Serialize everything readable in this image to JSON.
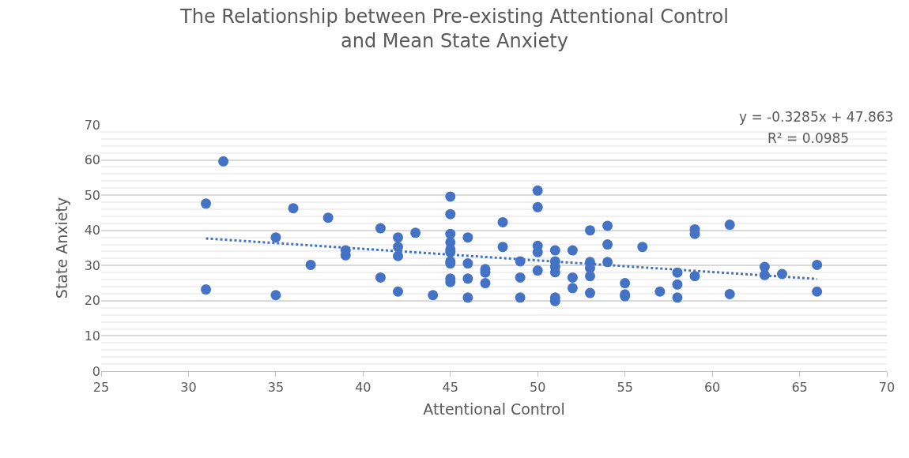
{
  "chart_data": {
    "type": "scatter",
    "title": "The Relationship between Pre-existing Attentional Control\nand Mean State Anxiety",
    "xlabel": "Attentional Control",
    "ylabel": "State Anxiety",
    "xlim": [
      25,
      70
    ],
    "xticks": [
      25,
      30,
      35,
      40,
      45,
      50,
      55,
      60,
      65,
      70
    ],
    "ylim": [
      0,
      70
    ],
    "yticks": [
      0,
      10,
      20,
      30,
      40,
      50,
      60,
      70
    ],
    "grid": "y",
    "marker": "circle",
    "annotations": [
      "y = -0.3285x + 47.863",
      "R² = 0.0985"
    ],
    "series": [
      {
        "color": "#4472c4",
        "x": [
          31,
          31,
          32,
          35,
          35,
          36,
          37,
          38,
          39,
          39,
          41,
          41,
          42,
          42,
          42,
          42,
          43,
          44,
          45,
          45,
          45,
          45,
          45,
          45,
          45,
          45,
          45,
          45,
          46,
          46,
          46,
          46,
          47,
          47,
          47,
          48,
          48,
          49,
          49,
          49,
          50,
          50,
          50,
          50,
          50,
          51,
          51,
          51,
          51,
          51,
          51,
          52,
          52,
          52,
          53,
          53,
          53,
          53,
          53,
          54,
          54,
          54,
          55,
          55,
          55,
          56,
          57,
          58,
          58,
          58,
          59,
          59,
          59,
          61,
          61,
          63,
          63,
          64,
          66,
          66
        ],
        "values": [
          47.6,
          23.2,
          59.6,
          38.0,
          21.6,
          46.3,
          30.2,
          43.6,
          34.3,
          32.9,
          40.6,
          26.6,
          38.0,
          35.3,
          32.7,
          22.6,
          39.3,
          21.6,
          49.6,
          44.6,
          39.0,
          36.6,
          34.6,
          33.8,
          31.2,
          30.6,
          26.3,
          25.3,
          38.0,
          30.6,
          26.3,
          20.9,
          29.0,
          28.0,
          25.0,
          42.3,
          35.3,
          31.2,
          26.6,
          20.9,
          51.3,
          46.6,
          35.6,
          33.8,
          28.6,
          34.3,
          31.2,
          29.6,
          28.1,
          20.9,
          19.9,
          34.3,
          26.6,
          23.6,
          40.0,
          31.0,
          29.3,
          27.0,
          22.2,
          41.3,
          36.0,
          31.0,
          25.0,
          21.8,
          21.3,
          35.3,
          22.6,
          28.0,
          24.6,
          20.9,
          40.3,
          39.0,
          27.0,
          41.6,
          21.9,
          29.6,
          27.3,
          27.6,
          30.2,
          22.6
        ]
      },
      {
        "type": "line",
        "color": "#4472c4",
        "line_style": "dotted",
        "marker": "none",
        "x": [
          31,
          66
        ],
        "values": [
          37.7,
          26.2
        ]
      }
    ]
  }
}
